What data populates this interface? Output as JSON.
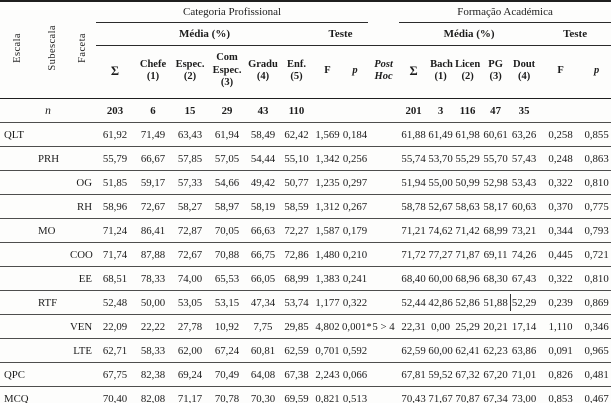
{
  "header": {
    "escala": "Escala",
    "subescala": "Subescala",
    "faceta": "Faceta",
    "section_cat": "Categoria Profissional",
    "section_form": "Formação Académica",
    "media": "Média (%)",
    "teste": "Teste",
    "f": "F",
    "p": "p",
    "post_hoc": "Post Hoc",
    "cols_cat": [
      "Σ",
      "Chefe (1)",
      "Espec. (2)",
      "Com Espec. (3)",
      "Gradu (4)",
      "Enf. (5)"
    ],
    "cols_form": [
      "Σ",
      "Bach (1)",
      "Licen (2)",
      "PG (3)",
      "Dout (4)"
    ]
  },
  "colors": {
    "rule_dark": "#1f1f1f",
    "rule_thin": "#4e4e4e",
    "text": "#1c1c1c",
    "background": "#fdfdfc"
  },
  "rows": [
    {
      "level": "n",
      "label": "n",
      "cells": [
        "203",
        "6",
        "15",
        "29",
        "43",
        "110",
        "",
        "",
        "",
        "201",
        "3",
        "116",
        "47",
        "35",
        "",
        ""
      ]
    },
    {
      "level": "escala",
      "label": "QLT",
      "cells": [
        "61,92",
        "71,49",
        "63,43",
        "61,94",
        "58,49",
        "62,42",
        "1,569",
        "0,184",
        "",
        "61,88",
        "61,49",
        "61,98",
        "60,61",
        "63,26",
        "0,258",
        "0,855"
      ]
    },
    {
      "level": "subescala",
      "label": "PRH",
      "cells": [
        "55,79",
        "66,67",
        "57,85",
        "57,05",
        "54,44",
        "55,10",
        "1,342",
        "0,256",
        "",
        "55,74",
        "53,70",
        "55,29",
        "55,70",
        "57,43",
        "0,248",
        "0,863"
      ]
    },
    {
      "level": "faceta",
      "label": "OG",
      "cells": [
        "51,85",
        "59,17",
        "57,33",
        "54,66",
        "49,42",
        "50,77",
        "1,235",
        "0,297",
        "",
        "51,94",
        "55,00",
        "50,99",
        "52,98",
        "53,43",
        "0,322",
        "0,810"
      ]
    },
    {
      "level": "faceta",
      "label": "RH",
      "cells": [
        "58,96",
        "72,67",
        "58,27",
        "58,97",
        "58,19",
        "58,59",
        "1,312",
        "0,267",
        "",
        "58,78",
        "52,67",
        "58,63",
        "58,17",
        "60,63",
        "0,370",
        "0,775"
      ]
    },
    {
      "level": "subescala",
      "label": "MO",
      "cells": [
        "71,24",
        "86,41",
        "72,87",
        "70,05",
        "66,63",
        "72,27",
        "1,587",
        "0,179",
        "",
        "71,21",
        "74,62",
        "71,42",
        "68,99",
        "73,21",
        "0,344",
        "0,793"
      ]
    },
    {
      "level": "faceta",
      "label": "COO",
      "cells": [
        "71,74",
        "87,88",
        "72,67",
        "70,88",
        "66,75",
        "72,86",
        "1,480",
        "0,210",
        "",
        "71,72",
        "77,27",
        "71,87",
        "69,11",
        "74,26",
        "0,445",
        "0,721"
      ]
    },
    {
      "level": "faceta",
      "label": "EE",
      "cells": [
        "68,51",
        "78,33",
        "74,00",
        "65,53",
        "66,05",
        "68,99",
        "1,383",
        "0,241",
        "",
        "68,40",
        "60,00",
        "68,96",
        "68,30",
        "67,43",
        "0,322",
        "0,810"
      ]
    },
    {
      "level": "subescala",
      "label": "RTF",
      "cells": [
        "52,48",
        "50,00",
        "53,05",
        "53,15",
        "47,34",
        "53,74",
        "1,177",
        "0,322",
        "",
        "52,44",
        "42,86",
        "52,86",
        "51,88",
        "52,29",
        "0,239",
        "0,869"
      ],
      "artifact_col": 13
    },
    {
      "level": "faceta",
      "label": "VEN",
      "cells": [
        "22,09",
        "22,22",
        "27,78",
        "10,92",
        "7,75",
        "29,85",
        "4,802",
        "0,001*",
        "5 > 4",
        "22,31",
        "0,00",
        "25,29",
        "20,21",
        "17,14",
        "1,110",
        "0,346"
      ]
    },
    {
      "level": "faceta",
      "label": "LTE",
      "cells": [
        "62,71",
        "58,33",
        "62,00",
        "67,24",
        "60,81",
        "62,59",
        "0,701",
        "0,592",
        "",
        "62,59",
        "60,00",
        "62,41",
        "62,23",
        "63,86",
        "0,091",
        "0,965"
      ]
    },
    {
      "level": "escala",
      "label": "QPC",
      "cells": [
        "67,75",
        "82,38",
        "69,24",
        "70,49",
        "64,08",
        "67,38",
        "2,243",
        "0,066",
        "",
        "67,81",
        "59,52",
        "67,32",
        "67,20",
        "71,01",
        "0,826",
        "0,481"
      ]
    },
    {
      "level": "escala",
      "label": "MCQ",
      "cells": [
        "70,40",
        "82,08",
        "71,17",
        "70,78",
        "70,30",
        "69,59",
        "0,821",
        "0,513",
        "",
        "70,43",
        "71,67",
        "70,87",
        "67,34",
        "73,00",
        "0,853",
        "0,467"
      ]
    }
  ]
}
